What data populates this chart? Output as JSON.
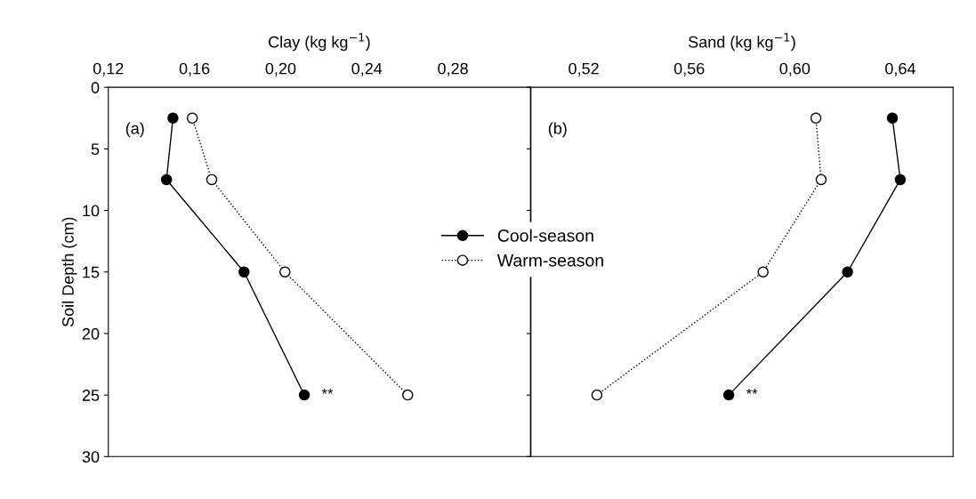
{
  "chart_data": [
    {
      "type": "line",
      "xlabel": "Clay (kg kg$^{−1}$)",
      "ylabel": "Soil Depth (cm)",
      "series": [
        {
          "name": "Cool-season",
          "color": "#000000",
          "line_style": "solid",
          "x": [
            0.15,
            0.147,
            0.183,
            0.211
          ],
          "values": [
            2.5,
            7.5,
            15,
            25
          ]
        },
        {
          "name": "Warm-season",
          "color": "#000000",
          "line_style": "dotted",
          "x": [
            0.159,
            0.168,
            0.202,
            0.259
          ],
          "values": [
            2.5,
            7.5,
            15,
            25
          ]
        }
      ],
      "xlim": [
        0.12,
        0.316
      ],
      "xticks": [
        {
          "value": 0.12,
          "label": "0,12"
        },
        {
          "value": 0.16,
          "label": "0,16"
        },
        {
          "value": 0.2,
          "label": "0,20"
        },
        {
          "value": 0.24,
          "label": "0,24"
        },
        {
          "value": 0.28,
          "label": "0,28"
        }
      ],
      "ylim": [
        30,
        0
      ],
      "yticks": [
        0,
        5,
        10,
        15,
        20,
        25,
        30
      ],
      "marker": "circle",
      "legend": "right",
      "annotations": [
        "(a)",
        "**"
      ]
    },
    {
      "type": "line",
      "xlabel": "Sand (kg kg$^{−1}$)",
      "series": [
        {
          "color": "#000000",
          "line_style": "solid",
          "x": [
            0.637,
            0.64,
            0.62,
            0.575
          ],
          "values": [
            2.5,
            7.5,
            15,
            25
          ]
        },
        {
          "color": "#000000",
          "line_style": "dotted",
          "x": [
            0.608,
            0.61,
            0.588,
            0.525
          ],
          "values": [
            2.5,
            7.5,
            15,
            25
          ]
        }
      ],
      "xlim": [
        0.5,
        0.66
      ],
      "xticks": [
        {
          "value": 0.52,
          "label": "0,52"
        },
        {
          "value": 0.56,
          "label": "0,56"
        },
        {
          "value": 0.6,
          "label": "0,60"
        },
        {
          "value": 0.64,
          "label": "0,64"
        }
      ],
      "ylim": [
        30,
        0
      ],
      "yticks": [
        0,
        5,
        10,
        15,
        20,
        25,
        30
      ],
      "marker": "circle",
      "tick_labels": "x",
      "annotations": [
        "(b)",
        "**"
      ]
    }
  ]
}
